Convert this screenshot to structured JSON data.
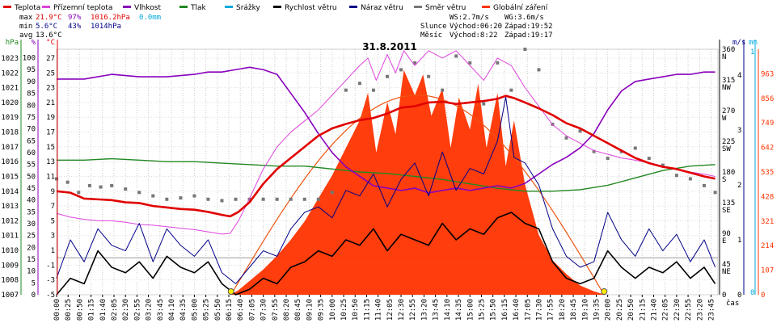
{
  "chart_data": {
    "type": "line",
    "title": "31.8.2011",
    "xlabel": "čas",
    "legend": [
      {
        "label": "Teplota",
        "color": "#e00000"
      },
      {
        "label": "Přízemní teplota",
        "color": "#dd44dd"
      },
      {
        "label": "Vlhkost",
        "color": "#8800bb"
      },
      {
        "label": "Tlak",
        "color": "#228822"
      },
      {
        "label": "Srážky",
        "color": "#00aadd"
      },
      {
        "label": "Rychlost větru",
        "color": "#000000"
      },
      {
        "label": "Náraz větru",
        "color": "#000088"
      },
      {
        "label": "Směr větru",
        "color": "#777777"
      },
      {
        "label": "Globální záření",
        "color": "#ff3300"
      }
    ],
    "stats": {
      "max": {
        "label": "max",
        "temp": "21.9°C",
        "hum": "97%",
        "press": "1016.2hPa",
        "rain": "0.0mm"
      },
      "min": {
        "label": "min",
        "temp": "5.6°C",
        "hum": "43%",
        "press": "1014hPa"
      },
      "avg": {
        "label": "avg",
        "temp": "13.6°C"
      },
      "ws": "WS:2.7m/s",
      "wg": "WG:3.6m/s",
      "sun_label": "Slunce",
      "sunrise": "Východ:06:20",
      "sunset": "Západ:19:52",
      "moon_label": "Měsíc",
      "moonrise": "Východ:8:22",
      "moonset": "Západ:19:17"
    },
    "axes": {
      "hpa": {
        "unit": "hPa",
        "ticks": [
          1007,
          1008,
          1009,
          1010,
          1011,
          1012,
          1013,
          1014,
          1015,
          1016,
          1017,
          1018,
          1019,
          1020,
          1021,
          1022,
          1023
        ],
        "range": [
          1007,
          1023.6
        ]
      },
      "humidity": {
        "unit": "%",
        "ticks": [
          0,
          5,
          10,
          15,
          20,
          25,
          30,
          35,
          40,
          45,
          50,
          55,
          60,
          65,
          70,
          75,
          80,
          85,
          90,
          95,
          100
        ],
        "range": [
          0,
          103.6
        ]
      },
      "temperature": {
        "unit": "°C",
        "ticks": [
          -5,
          -3,
          -1,
          1,
          3,
          5,
          7,
          9,
          11,
          13,
          15,
          17,
          19,
          21,
          23,
          25,
          27
        ],
        "range": [
          -5,
          28.2
        ]
      },
      "wind_dir": {
        "ticks": [
          "360 N",
          "315 NW",
          "270 W",
          "225 SW",
          "180 S",
          "135 SE",
          "90 E",
          "45 NE",
          "0"
        ],
        "range": [
          0,
          360
        ]
      },
      "wind_speed": {
        "unit": "m/s",
        "ticks": [
          0,
          1,
          2,
          3,
          4
        ],
        "range": [
          0,
          4.47
        ]
      },
      "rain": {
        "unit": "mm",
        "ticks": [
          0,
          1
        ]
      },
      "radiation": {
        "ticks": [
          0,
          107,
          214,
          321,
          428,
          535,
          642,
          749,
          856,
          963
        ],
        "range": [
          0,
          1070
        ]
      }
    },
    "x_ticks": [
      "00:00",
      "00:25",
      "00:50",
      "01:15",
      "01:40",
      "02:05",
      "02:30",
      "02:55",
      "03:20",
      "03:45",
      "04:10",
      "04:35",
      "05:00",
      "05:25",
      "05:50",
      "06:15",
      "06:40",
      "07:05",
      "07:30",
      "07:55",
      "08:20",
      "08:45",
      "09:10",
      "09:35",
      "10:00",
      "10:25",
      "10:50",
      "11:15",
      "11:40",
      "12:05",
      "12:30",
      "12:55",
      "13:20",
      "13:45",
      "14:10",
      "14:35",
      "15:00",
      "15:25",
      "15:50",
      "16:15",
      "16:40",
      "17:05",
      "17:30",
      "17:55",
      "18:20",
      "18:45",
      "19:10",
      "19:35",
      "20:00",
      "20:25",
      "20:50",
      "21:15",
      "21:40",
      "22:05",
      "22:30",
      "22:55",
      "23:20",
      "23:45"
    ],
    "x_range_hours": [
      0,
      24
    ],
    "sun_events": {
      "sunrise_hour": 6.33,
      "sunset_hour": 19.87
    },
    "series": [
      {
        "name": "Teplota",
        "unit": "°C",
        "color": "#e00000",
        "x": [
          0,
          0.5,
          1,
          1.5,
          2,
          2.5,
          3,
          3.5,
          4,
          4.5,
          5,
          5.5,
          6,
          6.3,
          6.6,
          7,
          7.5,
          8,
          8.5,
          9,
          9.5,
          10,
          10.5,
          11,
          11.5,
          12,
          12.5,
          13,
          13.5,
          14,
          14.5,
          15,
          15.5,
          16,
          16.3,
          16.6,
          17,
          17.5,
          18,
          18.5,
          19,
          19.5,
          20,
          20.5,
          21,
          21.5,
          22,
          22.5,
          23,
          23.5,
          23.9
        ],
        "y": [
          9,
          8.8,
          8,
          7.9,
          7.8,
          7.5,
          7.4,
          7.0,
          6.8,
          6.6,
          6.5,
          6.2,
          5.8,
          5.6,
          6.2,
          7.5,
          10,
          12,
          13.5,
          15,
          16.5,
          17.5,
          18.1,
          18.6,
          18.9,
          19.5,
          20.3,
          20.5,
          21,
          21.1,
          20.8,
          21.0,
          21.2,
          21.5,
          21.9,
          21.6,
          21.0,
          20.2,
          19.3,
          18.2,
          17.5,
          16.5,
          15.5,
          14.5,
          13.5,
          12.8,
          12.3,
          12.0,
          11.5,
          11.0,
          10.7
        ]
      },
      {
        "name": "Přízemní teplota",
        "unit": "°C",
        "color": "#dd44dd",
        "x": [
          0,
          0.5,
          1,
          1.5,
          2,
          2.5,
          3,
          3.5,
          4,
          4.5,
          5,
          5.5,
          6,
          6.3,
          6.6,
          7,
          7.5,
          8,
          8.5,
          9,
          9.5,
          10,
          10.5,
          11,
          11.3,
          11.6,
          12,
          12.3,
          12.6,
          13,
          13.5,
          14,
          14.5,
          15,
          15.5,
          16,
          16.5,
          17,
          17.5,
          18,
          18.5,
          19,
          19.5,
          20,
          20.5,
          21,
          21.5,
          22,
          22.5,
          23,
          23.5,
          23.9
        ],
        "y": [
          6,
          5.5,
          5.2,
          5,
          5,
          4.8,
          4.5,
          4.4,
          4.2,
          4.0,
          3.8,
          3.5,
          3.2,
          3.3,
          5,
          8,
          12,
          15,
          17,
          18.5,
          20,
          22,
          24,
          26,
          27,
          24,
          27.5,
          25,
          28,
          26,
          28,
          27,
          28,
          26,
          24,
          27,
          26,
          23,
          20.5,
          18,
          16.5,
          15.5,
          14.5,
          14.0,
          13.5,
          13.2,
          12.8,
          12.4,
          12.0,
          11.6,
          11.3,
          11.0
        ]
      },
      {
        "name": "Vlhkost",
        "unit": "%",
        "color": "#8800bb",
        "x": [
          0,
          1,
          2,
          3,
          4,
          5,
          5.5,
          6,
          6.5,
          7,
          7.5,
          8,
          8.5,
          9,
          9.5,
          10,
          10.5,
          11,
          11.5,
          12,
          12.5,
          13,
          13.5,
          14,
          14.5,
          15,
          15.5,
          16,
          16.5,
          17,
          17.5,
          18,
          18.5,
          19,
          19.5,
          20,
          20.5,
          21,
          21.5,
          22,
          22.5,
          23,
          23.5,
          23.9
        ],
        "y": [
          91,
          91,
          93,
          92,
          92,
          93,
          94,
          94,
          95,
          96,
          95,
          93,
          85,
          77,
          68,
          60,
          54,
          50,
          46,
          45,
          44,
          45,
          43,
          44,
          45,
          44,
          45,
          46,
          45,
          47,
          51,
          55,
          58,
          62,
          68,
          78,
          86,
          90,
          91,
          92,
          93,
          93,
          94,
          94
        ]
      },
      {
        "name": "Tlak",
        "unit": "hPa",
        "color": "#228822",
        "x": [
          0,
          1,
          2,
          3,
          4,
          5,
          6,
          7,
          8,
          9,
          10,
          11,
          12,
          13,
          14,
          15,
          16,
          17,
          18,
          19,
          20,
          21,
          22,
          23,
          23.9
        ],
        "y": [
          1016.1,
          1016.1,
          1016.2,
          1016.1,
          1016.0,
          1016.0,
          1015.9,
          1015.8,
          1015.7,
          1015.7,
          1015.5,
          1015.3,
          1015.2,
          1015.0,
          1014.8,
          1014.5,
          1014.2,
          1014.0,
          1014.0,
          1014.1,
          1014.4,
          1014.9,
          1015.4,
          1015.7,
          1015.8
        ]
      },
      {
        "name": "Rychlost větru",
        "unit": "m/s",
        "color": "#000000",
        "x": [
          0,
          0.5,
          1,
          1.5,
          2,
          2.5,
          3,
          3.5,
          4,
          4.5,
          5,
          5.5,
          6,
          6.5,
          7,
          7.5,
          8,
          8.5,
          9,
          9.5,
          10,
          10.5,
          11,
          11.5,
          12,
          12.5,
          13,
          13.5,
          14,
          14.5,
          15,
          15.5,
          16,
          16.5,
          17,
          17.5,
          18,
          18.5,
          19,
          19.5,
          20,
          20.5,
          21,
          21.5,
          22,
          22.5,
          23,
          23.5,
          23.9
        ],
        "y": [
          0,
          0.3,
          0.2,
          0.8,
          0.5,
          0.4,
          0.6,
          0.3,
          0.7,
          0.5,
          0.4,
          0.6,
          0.2,
          0,
          0.1,
          0.3,
          0.2,
          0.5,
          0.6,
          0.8,
          0.7,
          1.0,
          0.9,
          1.2,
          0.8,
          1.1,
          1.0,
          0.9,
          1.3,
          1.0,
          1.2,
          1.1,
          1.4,
          1.5,
          1.3,
          1.2,
          0.6,
          0.3,
          0.2,
          0.3,
          0.8,
          0.5,
          0.3,
          0.5,
          0.4,
          0.6,
          0.3,
          0.5,
          0.2
        ]
      },
      {
        "name": "Náraz větru",
        "unit": "m/s",
        "color": "#000088",
        "x": [
          0,
          0.5,
          1,
          1.5,
          2,
          2.5,
          3,
          3.5,
          4,
          4.5,
          5,
          5.5,
          6,
          6.5,
          7,
          7.5,
          8,
          8.5,
          9,
          9.5,
          10,
          10.5,
          11,
          11.5,
          12,
          12.5,
          13,
          13.5,
          14,
          14.5,
          15,
          15.5,
          16,
          16.3,
          16.6,
          17,
          17.5,
          18,
          18.5,
          19,
          19.5,
          20,
          20.5,
          21,
          21.5,
          22,
          22.5,
          23,
          23.5,
          23.9
        ],
        "y": [
          0.3,
          1.0,
          0.6,
          1.2,
          0.9,
          0.8,
          1.3,
          0.6,
          1.2,
          0.9,
          0.7,
          1.0,
          0.4,
          0.2,
          0.5,
          0.8,
          0.7,
          1.2,
          1.5,
          1.6,
          1.4,
          1.9,
          1.8,
          2.2,
          1.6,
          2.1,
          2.4,
          1.8,
          2.6,
          1.9,
          2.3,
          2.2,
          2.8,
          3.6,
          2.5,
          2.4,
          2.0,
          1.2,
          0.7,
          0.5,
          0.6,
          1.5,
          1.0,
          0.7,
          1.2,
          0.8,
          1.1,
          0.6,
          1.0,
          0.5
        ]
      },
      {
        "name": "Směr větru",
        "unit": "°",
        "color": "#777777",
        "x": [
          0,
          0.4,
          0.8,
          1.2,
          1.6,
          2.0,
          2.5,
          3.0,
          3.5,
          4.0,
          4.5,
          5.0,
          5.5,
          6.0,
          6.5,
          7.0,
          7.5,
          8.0,
          8.5,
          9.0,
          9.5,
          10.0,
          10.5,
          11.0,
          11.5,
          12.0,
          12.5,
          13.0,
          13.5,
          14.0,
          14.5,
          15.0,
          15.5,
          16.0,
          16.5,
          17.0,
          17.5,
          18.0,
          18.5,
          19.0,
          19.5,
          20.0,
          20.5,
          21.0,
          21.5,
          22.0,
          22.5,
          23.0,
          23.5,
          23.9
        ],
        "y": [
          170,
          165,
          150,
          160,
          158,
          160,
          155,
          150,
          145,
          140,
          142,
          145,
          140,
          138,
          140,
          140,
          140,
          140,
          140,
          140,
          140,
          150,
          300,
          310,
          300,
          320,
          330,
          340,
          320,
          300,
          350,
          340,
          280,
          340,
          300,
          360,
          330,
          250,
          230,
          240,
          210,
          200,
          210,
          215,
          200,
          190,
          175,
          170,
          160,
          150
        ]
      },
      {
        "name": "Globální záření",
        "unit": "W/m²",
        "color": "#ff3300",
        "x": [
          6.3,
          6.6,
          7,
          7.5,
          8,
          8.5,
          9,
          9.5,
          10,
          10.5,
          11,
          11.3,
          11.6,
          12,
          12.3,
          12.6,
          13,
          13.3,
          13.6,
          14,
          14.3,
          14.6,
          15,
          15.3,
          15.6,
          16,
          16.3,
          16.6,
          17,
          17.5,
          18,
          18.5,
          19,
          19.5,
          19.9
        ],
        "y": [
          0,
          20,
          60,
          110,
          170,
          240,
          320,
          420,
          520,
          640,
          760,
          880,
          620,
          840,
          700,
          980,
          870,
          960,
          780,
          900,
          640,
          860,
          720,
          920,
          640,
          880,
          560,
          760,
          480,
          260,
          150,
          90,
          40,
          15,
          0
        ]
      }
    ]
  }
}
